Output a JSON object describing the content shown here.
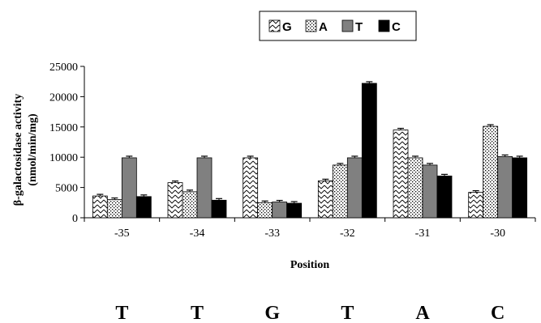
{
  "chart_data": {
    "type": "bar",
    "categories": [
      "-35",
      "-34",
      "-33",
      "-32",
      "-31",
      "-30"
    ],
    "series": [
      {
        "name": "G",
        "values": [
          3600,
          5800,
          9900,
          6100,
          14500,
          4200
        ],
        "pattern": "zigzag",
        "color": "#ffffff"
      },
      {
        "name": "A",
        "values": [
          3000,
          4300,
          2500,
          8700,
          9900,
          15100
        ],
        "pattern": "dots",
        "color": "#ffffff"
      },
      {
        "name": "T",
        "values": [
          9900,
          9900,
          2600,
          9900,
          8700,
          10100
        ],
        "pattern": "solid",
        "color": "#808080"
      },
      {
        "name": "C",
        "values": [
          3500,
          2900,
          2400,
          22200,
          6900,
          9900
        ],
        "pattern": "solid",
        "color": "#000000"
      }
    ],
    "error_bars": true,
    "ylabel_line1": "β-galactosidase activity",
    "ylabel_line2": "(nmol/min/mg)",
    "xlabel": "Position",
    "ylim": [
      0,
      25000
    ],
    "yticks": [
      0,
      5000,
      10000,
      15000,
      20000,
      25000
    ],
    "legend_position": "top-center",
    "grid": false,
    "base_letters": [
      "T",
      "T",
      "G",
      "T",
      "A",
      "C"
    ]
  }
}
